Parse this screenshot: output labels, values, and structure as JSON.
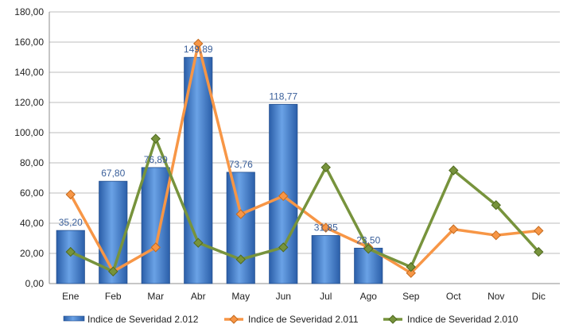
{
  "chart_data": {
    "type": "bar",
    "title": "",
    "xlabel": "",
    "ylabel": "",
    "ylim": [
      0,
      180
    ],
    "y_ticks": [
      "0,00",
      "20,00",
      "40,00",
      "60,00",
      "80,00",
      "100,00",
      "120,00",
      "140,00",
      "160,00",
      "180,00"
    ],
    "y_tick_values": [
      0,
      20,
      40,
      60,
      80,
      100,
      120,
      140,
      160,
      180
    ],
    "categories": [
      "Ene",
      "Feb",
      "Mar",
      "Abr",
      "May",
      "Jun",
      "Jul",
      "Ago",
      "Sep",
      "Oct",
      "Nov",
      "Dic"
    ],
    "grid": "horizontal",
    "legend_position": "bottom",
    "series": [
      {
        "name": "Indice de Severidad 2.012",
        "kind": "bar",
        "color": "#3a74c4",
        "values": [
          35.2,
          67.8,
          76.89,
          149.89,
          73.76,
          118.77,
          31.85,
          23.5,
          null,
          null,
          null,
          null
        ],
        "labels": [
          "35,20",
          "67,80",
          "76,89",
          "149,89",
          "73,76",
          "118,77",
          "31,85",
          "23,50",
          "",
          "",
          "",
          ""
        ]
      },
      {
        "name": "Indice de Severidad 2.011",
        "kind": "line",
        "color": "#f79646",
        "values": [
          59,
          8,
          24,
          159,
          46,
          58,
          37,
          24,
          7,
          36,
          32,
          35
        ]
      },
      {
        "name": "Indice de Severidad 2.010",
        "kind": "line",
        "color": "#77933c",
        "values": [
          21,
          8,
          96,
          27,
          16,
          24,
          77,
          23,
          11,
          75,
          52,
          21
        ]
      }
    ]
  }
}
